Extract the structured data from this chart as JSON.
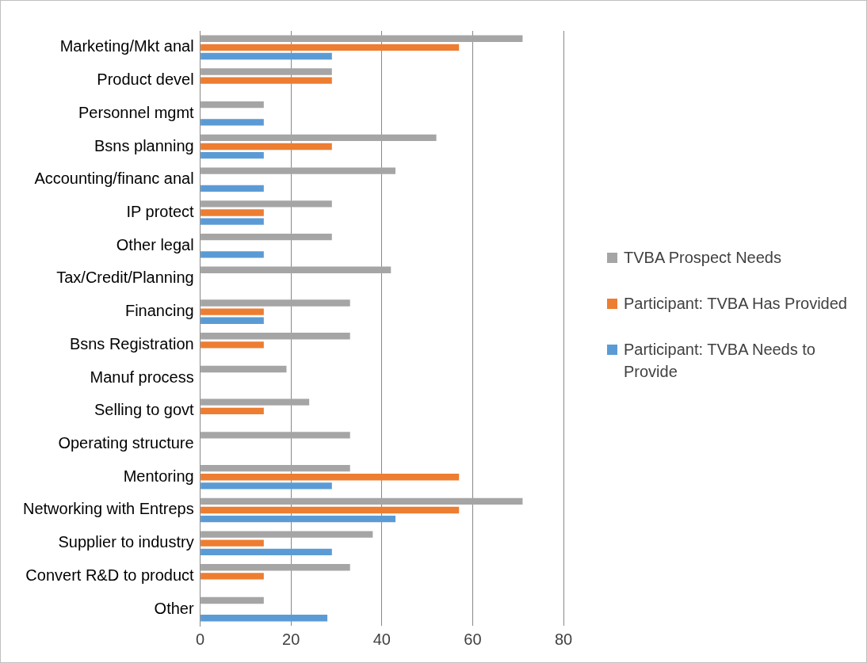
{
  "chart_data": {
    "type": "bar",
    "orientation": "horizontal",
    "categories": [
      "Marketing/Mkt anal",
      "Product devel",
      "Personnel mgmt",
      "Bsns planning",
      "Accounting/financ anal",
      "IP protect",
      "Other legal",
      "Tax/Credit/Planning",
      "Financing",
      "Bsns Registration",
      "Manuf process",
      "Selling to govt",
      "Operating structure",
      "Mentoring",
      "Networking with Entreps",
      "Supplier to industry",
      "Convert R&D to product",
      "Other"
    ],
    "series": [
      {
        "name": "TVBA Prospect Needs",
        "color": "#a5a5a5",
        "values": [
          71,
          29,
          14,
          52,
          43,
          29,
          29,
          42,
          33,
          33,
          19,
          24,
          33,
          33,
          71,
          38,
          33,
          14
        ]
      },
      {
        "name": "Participant: TVBA Has Provided",
        "color": "#ed7d31",
        "values": [
          57,
          29,
          0,
          29,
          0,
          14,
          0,
          0,
          14,
          14,
          0,
          14,
          0,
          57,
          57,
          14,
          14,
          0
        ]
      },
      {
        "name": "Participant: TVBA Needs to Provide",
        "color": "#5b9bd5",
        "values": [
          29,
          0,
          14,
          14,
          14,
          14,
          14,
          0,
          14,
          0,
          0,
          0,
          0,
          29,
          43,
          29,
          0,
          28
        ]
      }
    ],
    "xlim": [
      0,
      80
    ],
    "xticks": [
      0,
      20,
      40,
      60,
      80
    ],
    "grid": "x",
    "legend": "right"
  }
}
